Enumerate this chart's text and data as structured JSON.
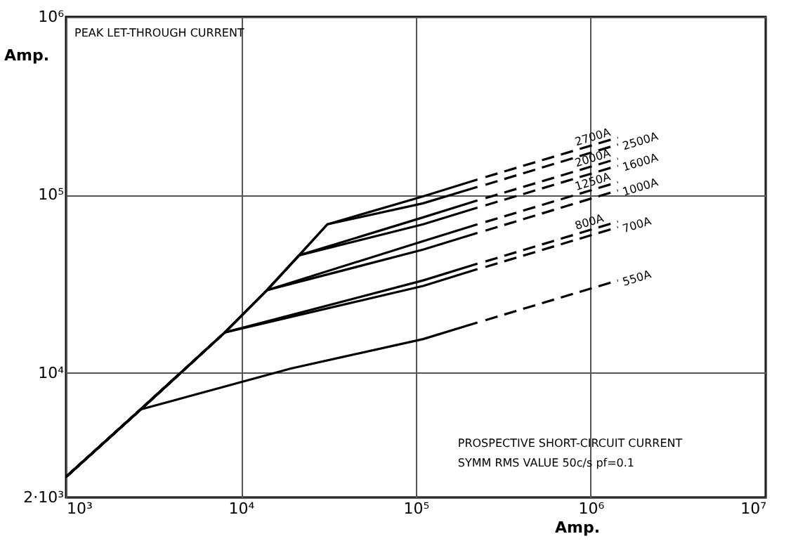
{
  "chart_data": {
    "type": "line",
    "log": "xy",
    "grid": true,
    "xlabel": "Amp.",
    "ylabel": "Amp.",
    "xlim": [
      1000,
      10000000
    ],
    "ylim": [
      2000,
      1000000
    ],
    "xticks": [
      {
        "value": 1000,
        "label": "10³"
      },
      {
        "value": 10000,
        "label": "10⁴"
      },
      {
        "value": 100000,
        "label": "10⁵"
      },
      {
        "value": 1000000,
        "label": "10⁶"
      },
      {
        "value": 10000000,
        "label": "10⁷"
      }
    ],
    "yticks": [
      {
        "value": 2000,
        "label": "2·10³"
      },
      {
        "value": 10000,
        "label": "10⁴"
      },
      {
        "value": 100000,
        "label": "10⁵"
      },
      {
        "value": 1000000,
        "label": "10⁶"
      }
    ],
    "annotations": [
      "PEAK LET-THROUGH CURRENT",
      "PROSPECTIVE SHORT-CIRCUIT CURRENT",
      "SYMM RMS VALUE 50c/s pf=0.1"
    ],
    "series": [
      {
        "color": "#000000",
        "line_style": "solid",
        "x": [
          1000,
          2670,
          19300,
          110000,
          225000
        ],
        "values": [
          2610,
          6240,
          10600,
          15500,
          19200
        ]
      },
      {
        "color": "#000000",
        "line_style": "solid",
        "x": [
          1000,
          2670,
          8090,
          110000,
          225000
        ],
        "values": [
          2610,
          6240,
          16900,
          30800,
          38300
        ]
      },
      {
        "color": "#000000",
        "line_style": "solid",
        "x": [
          1000,
          2670,
          8090,
          110000,
          225000
        ],
        "values": [
          2610,
          6240,
          16900,
          33100,
          41100
        ]
      },
      {
        "color": "#000000",
        "line_style": "solid",
        "x": [
          1000,
          2670,
          8090,
          14100,
          110000,
          225000
        ],
        "values": [
          2610,
          6240,
          16900,
          29200,
          49300,
          61200
        ]
      },
      {
        "color": "#000000",
        "line_style": "solid",
        "x": [
          1000,
          2670,
          8090,
          14100,
          110000,
          225000
        ],
        "values": [
          2610,
          6240,
          16900,
          29200,
          55000,
          68400
        ]
      },
      {
        "color": "#000000",
        "line_style": "solid",
        "x": [
          1000,
          2670,
          8090,
          14100,
          21500,
          110000,
          225000
        ],
        "values": [
          2610,
          6240,
          16900,
          29200,
          45800,
          68400,
          84900
        ]
      },
      {
        "color": "#000000",
        "line_style": "solid",
        "x": [
          1000,
          2670,
          8090,
          14100,
          21500,
          110000,
          225000
        ],
        "values": [
          2610,
          6240,
          16900,
          29200,
          45800,
          74800,
          93100
        ]
      },
      {
        "color": "#000000",
        "line_style": "solid",
        "x": [
          1000,
          2670,
          8090,
          14100,
          21500,
          31200,
          110000,
          225000
        ],
        "values": [
          2610,
          6240,
          16900,
          29200,
          45800,
          68400,
          89700,
          111000
        ]
      },
      {
        "color": "#000000",
        "line_style": "solid",
        "x": [
          1000,
          2670,
          8090,
          14100,
          21500,
          31200,
          110000,
          225000
        ],
        "values": [
          2610,
          6240,
          16900,
          29200,
          45800,
          68400,
          98200,
          122000
        ]
      },
      {
        "name": "550A",
        "color": "#000000",
        "line_style": "dashed",
        "x": [
          250000,
          1430000
        ],
        "values": [
          19800,
          33100
        ]
      },
      {
        "name": "700A",
        "color": "#000000",
        "line_style": "dashed",
        "x": [
          250000,
          1430000
        ],
        "values": [
          39400,
          65900
        ]
      },
      {
        "name": "800A",
        "color": "#000000",
        "line_style": "dashed",
        "x": [
          250000,
          1430000
        ],
        "values": [
          42300,
          70900
        ]
      },
      {
        "name": "1000A",
        "color": "#000000",
        "line_style": "dashed",
        "x": [
          250000,
          1430000
        ],
        "values": [
          63000,
          106000
        ]
      },
      {
        "name": "1250A",
        "color": "#000000",
        "line_style": "dashed",
        "x": [
          250000,
          1430000
        ],
        "values": [
          70500,
          118000
        ]
      },
      {
        "name": "1600A",
        "color": "#000000",
        "line_style": "dashed",
        "x": [
          250000,
          1430000
        ],
        "values": [
          87400,
          146000
        ]
      },
      {
        "name": "2000A",
        "color": "#000000",
        "line_style": "dashed",
        "x": [
          250000,
          1430000
        ],
        "values": [
          95900,
          160000
        ]
      },
      {
        "name": "2500A",
        "color": "#000000",
        "line_style": "dashed",
        "x": [
          250000,
          1430000
        ],
        "values": [
          114000,
          192000
        ]
      },
      {
        "name": "2700A",
        "color": "#000000",
        "line_style": "dashed",
        "x": [
          250000,
          1430000
        ],
        "values": [
          126000,
          210000
        ]
      }
    ]
  }
}
